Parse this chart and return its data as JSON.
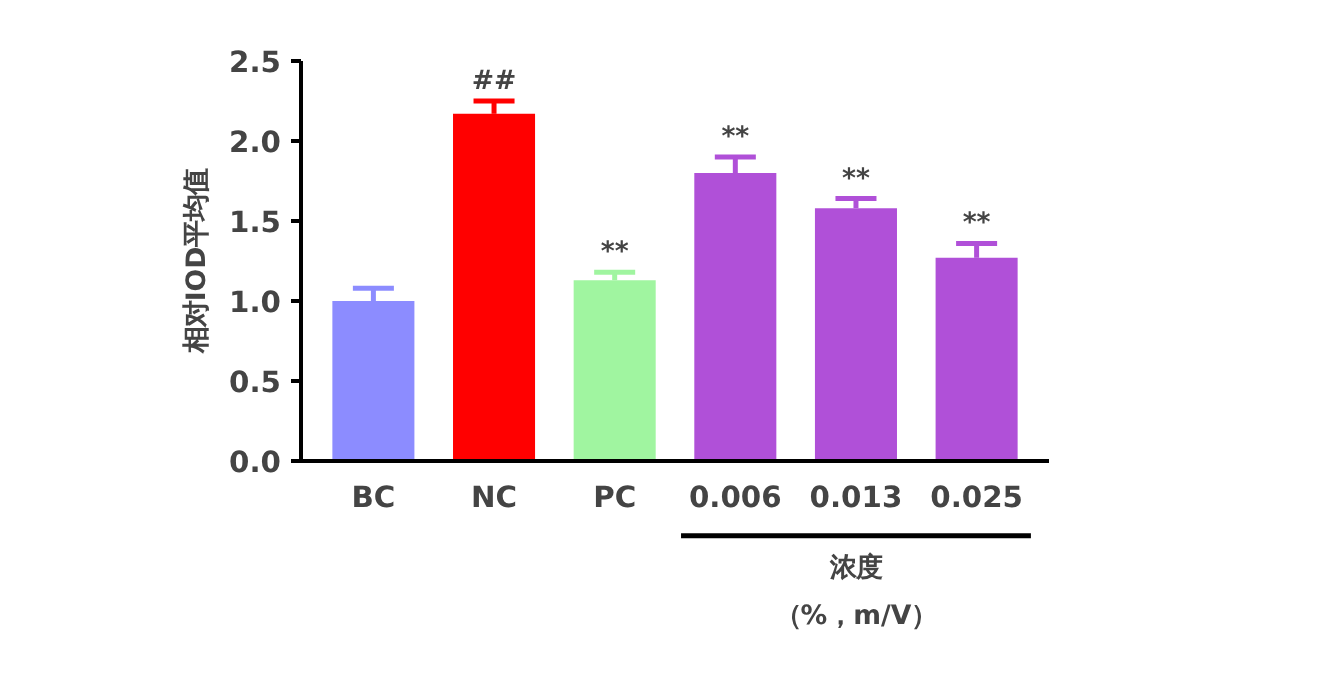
{
  "chart_data": {
    "type": "bar",
    "ylabel": "相对IOD平均值",
    "categories": [
      "BC",
      "NC",
      "PC",
      "0.006",
      "0.013",
      "0.025"
    ],
    "values": [
      1.0,
      2.17,
      1.13,
      1.8,
      1.58,
      1.27
    ],
    "errors": [
      0.08,
      0.08,
      0.05,
      0.1,
      0.06,
      0.09
    ],
    "colors": [
      "#8c8cff",
      "#ff0000",
      "#a0f5a0",
      "#b050d8",
      "#b050d8",
      "#b050d8"
    ],
    "ylim": [
      0,
      2.5
    ],
    "yticks": [
      {
        "value": 0,
        "label": "0.0"
      },
      {
        "value": 0.5,
        "label": "0.5"
      },
      {
        "value": 1,
        "label": "1.0"
      },
      {
        "value": 1.5,
        "label": "1.5"
      },
      {
        "value": 2,
        "label": "2.0"
      },
      {
        "value": 2.5,
        "label": "2.5"
      }
    ],
    "grid": false,
    "annotations": [
      {
        "text": "##",
        "x": "NC",
        "y": 2.25
      },
      {
        "text": "**",
        "x": "PC",
        "y": 1.18
      },
      {
        "text": "**",
        "x": "0.006",
        "y": 1.9
      },
      {
        "text": "**",
        "x": "0.013",
        "y": 1.64
      },
      {
        "text": "**",
        "x": "0.025",
        "y": 1.36
      },
      "浓度",
      "（%，m/V）"
    ]
  }
}
